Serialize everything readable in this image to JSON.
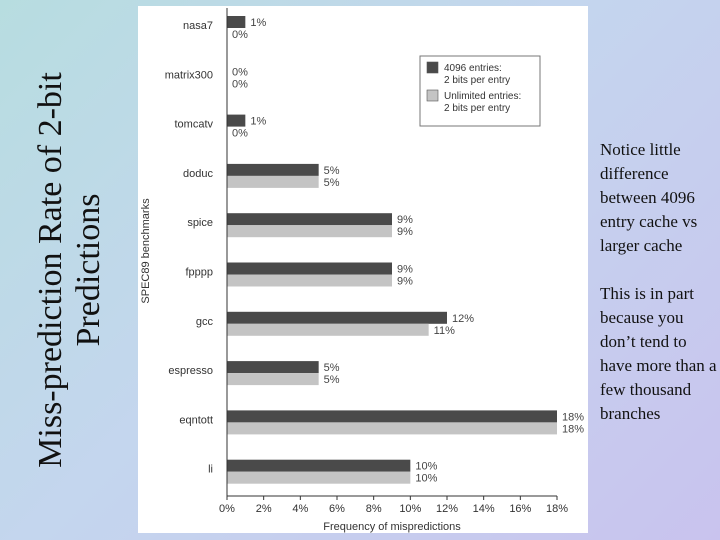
{
  "slide": {
    "title_line1": "Miss-prediction Rate of 2-bit",
    "title_line2": "Predictions",
    "note1": "Notice little difference between 4096 entry cache vs larger cache",
    "note2": "This is in part because you don’t tend to have more than a few thousand branches"
  },
  "chart_data": {
    "type": "bar",
    "orientation": "horizontal",
    "categories": [
      "nasa7",
      "matrix300",
      "tomcatv",
      "doduc",
      "spice",
      "fpppp",
      "gcc",
      "espresso",
      "eqntott",
      "li"
    ],
    "series": [
      {
        "name": "4096 entries: 2 bits per entry",
        "values": [
          1,
          0,
          1,
          5,
          9,
          9,
          12,
          5,
          18,
          10
        ],
        "labels": [
          "1%",
          "0%",
          "1%",
          "5%",
          "9%",
          "9%",
          "12%",
          "5%",
          "18%",
          "10%"
        ],
        "color": "#4a4a4a"
      },
      {
        "name": "Unlimited entries: 2 bits per entry",
        "values": [
          0,
          0,
          0,
          5,
          9,
          9,
          11,
          5,
          18,
          10
        ],
        "labels": [
          "0%",
          "0%",
          "0%",
          "5%",
          "9%",
          "9%",
          "11%",
          "5%",
          "18%",
          "10%"
        ],
        "color": "#c4c4c4"
      }
    ],
    "legend": [
      {
        "line1": "4096 entries:",
        "line2": "2 bits per entry",
        "color": "#4a4a4a"
      },
      {
        "line1": "Unlimited entries:",
        "line2": "2 bits per entry",
        "color": "#c4c4c4"
      }
    ],
    "legend_position": "top-right",
    "xlim": [
      0,
      18
    ],
    "xticks": [
      0,
      2,
      4,
      6,
      8,
      10,
      12,
      14,
      16,
      18
    ],
    "xtick_labels": [
      "0%",
      "2%",
      "4%",
      "6%",
      "8%",
      "10%",
      "12%",
      "14%",
      "16%",
      "18%"
    ],
    "xlabel": "Frequency of mispredictions",
    "ylabel": "SPEC89 benchmarks",
    "grid": false
  }
}
